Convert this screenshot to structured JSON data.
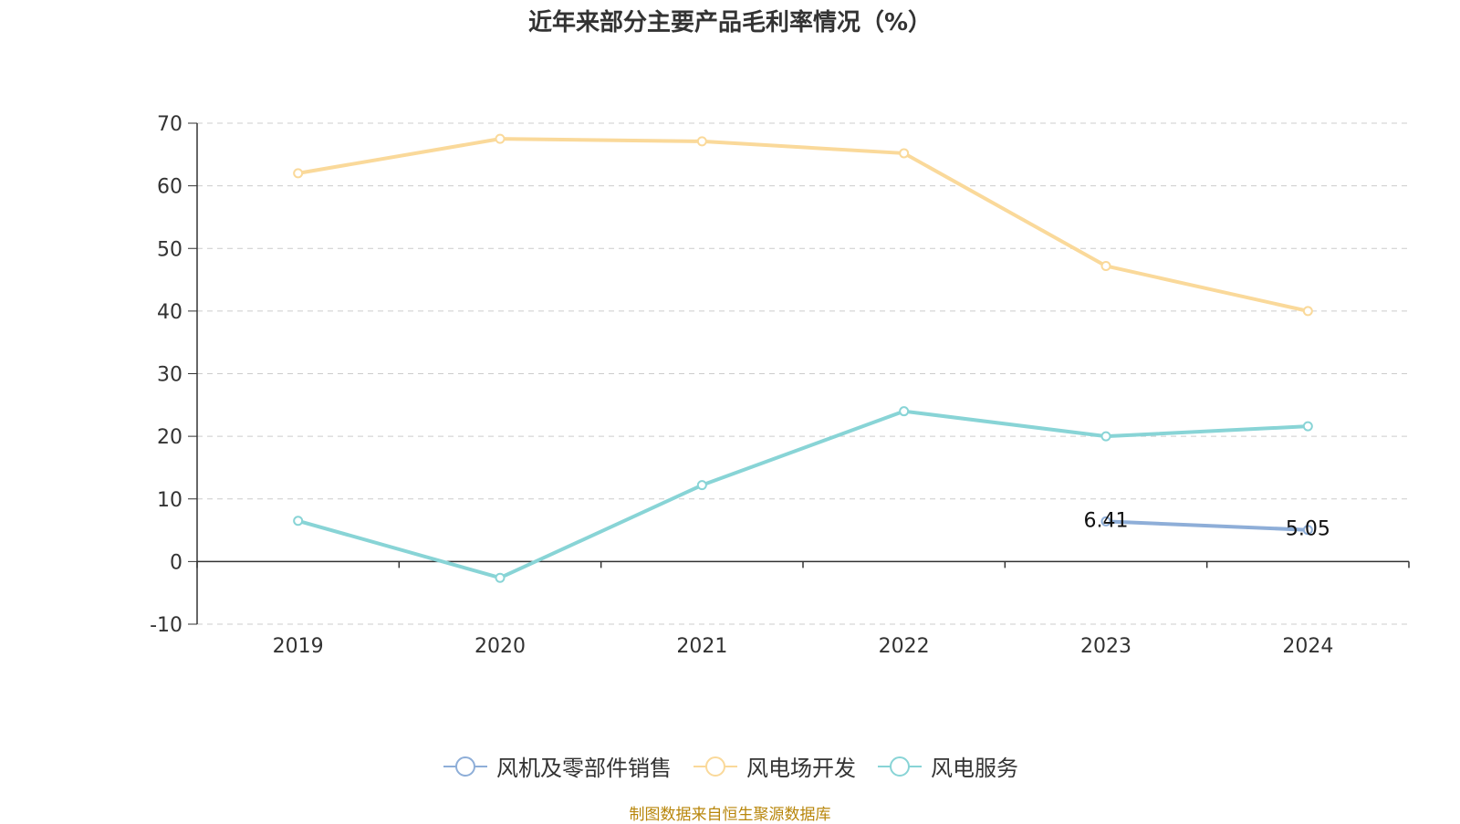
{
  "chart_data": {
    "type": "line",
    "title": "近年来部分主要产品毛利率情况（%）",
    "categories": [
      "2019",
      "2020",
      "2021",
      "2022",
      "2023",
      "2024"
    ],
    "yticks": [
      "70",
      "60",
      "50",
      "40",
      "30",
      "20",
      "10",
      "0",
      "-10"
    ],
    "ylim": [
      -10,
      70
    ],
    "grid": true,
    "legend_position": "bottom",
    "series": [
      {
        "name": "风机及零部件销售",
        "color": "#8eaed8",
        "values": [
          null,
          null,
          null,
          null,
          6.41,
          5.05
        ],
        "labels": [
          "",
          "",
          "",
          "",
          "6.41",
          "5.05"
        ]
      },
      {
        "name": "风电场开发",
        "color": "#fad99a",
        "values": [
          62.0,
          67.5,
          67.1,
          65.2,
          47.2,
          40.0
        ]
      },
      {
        "name": "风电服务",
        "color": "#88d4d6",
        "values": [
          6.5,
          -2.6,
          12.2,
          24.0,
          20.0,
          21.6
        ]
      }
    ]
  },
  "source_text": "制图数据来自恒生聚源数据库"
}
